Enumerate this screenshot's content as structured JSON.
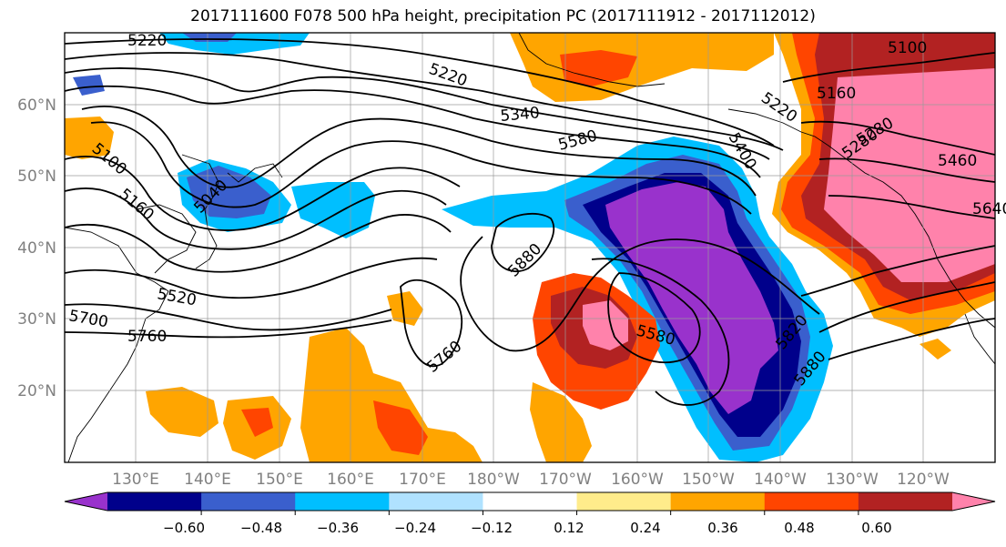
{
  "title": "2017111600 F078 500 hPa height, precipitation PC (2017111912 - 2017112012)",
  "map": {
    "lon_labels": [
      "130°E",
      "140°E",
      "150°E",
      "160°E",
      "170°E",
      "180°W",
      "170°W",
      "160°W",
      "150°W",
      "140°W",
      "130°W",
      "120°W"
    ],
    "lat_labels": [
      "60°N",
      "50°N",
      "40°N",
      "30°N",
      "20°N"
    ],
    "lon_values": [
      130,
      140,
      150,
      160,
      170,
      180,
      190,
      200,
      210,
      220,
      230,
      240
    ],
    "lat_values": [
      60,
      50,
      40,
      30,
      20
    ],
    "height_contour_labels": [
      "5220",
      "5100",
      "5160",
      "5040",
      "5220",
      "5340",
      "5580",
      "5400",
      "5280",
      "5220",
      "5100",
      "5160",
      "5280",
      "5460",
      "5640",
      "5880",
      "5760",
      "5580",
      "5820",
      "5880",
      "5700",
      "5760",
      "5520"
    ],
    "colors": {
      "neg_060": "#9932cc",
      "neg_048": "#00008b",
      "neg_036": "#3a5fcd",
      "neg_024": "#00bfff",
      "neg_012": "#b0e2ff",
      "zero": "#ffffff",
      "pos_012": "#ffec8b",
      "pos_024": "#ffa500",
      "pos_036": "#ff4500",
      "pos_048": "#b22222",
      "pos_060": "#ff82ab"
    }
  },
  "colorbar": {
    "ticks": [
      "−0.60",
      "−0.48",
      "−0.36",
      "−0.24",
      "−0.12",
      "0.12",
      "0.24",
      "0.36",
      "0.48",
      "0.60"
    ],
    "segment_colors": [
      "#9932cc",
      "#00008b",
      "#3a5fcd",
      "#00bfff",
      "#b0e2ff",
      "#ffffff",
      "#ffec8b",
      "#ffa500",
      "#ff4500",
      "#b22222",
      "#ff82ab"
    ]
  }
}
